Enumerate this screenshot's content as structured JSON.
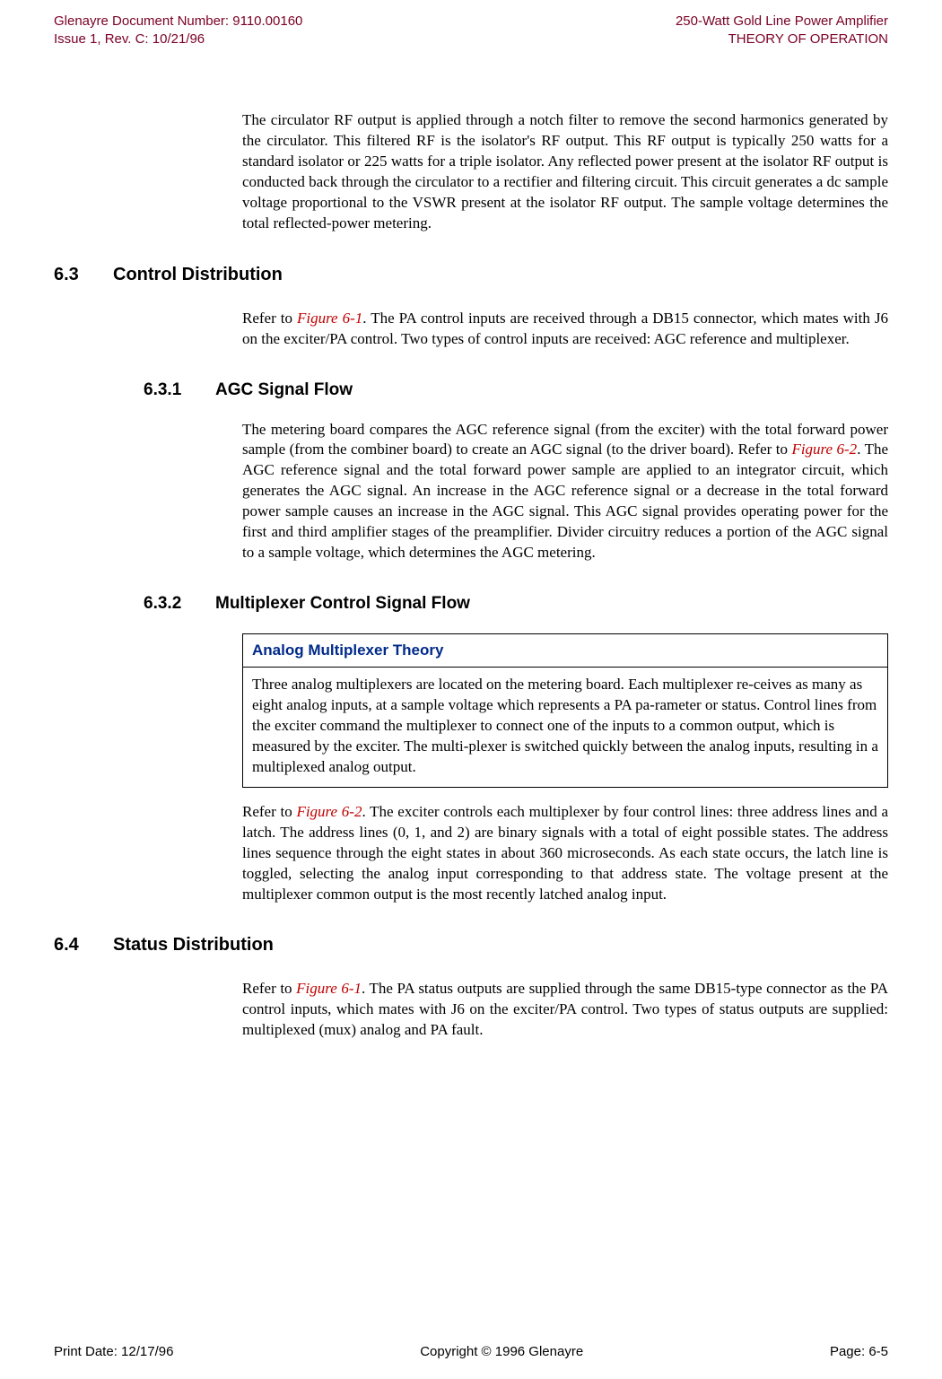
{
  "header": {
    "left_line1": "Glenayre Document Number: 9110.00160",
    "left_line2": "Issue 1, Rev. C: 10/21/96",
    "right_line1": "250-Watt Gold Line Power Amplifier",
    "right_line2": "THEORY OF OPERATION"
  },
  "intro_paragraph": "The circulator RF output is applied through a notch filter to remove the second harmonics generated by the circulator. This filtered RF is the isolator's RF output. This RF output is typically 250 watts for a standard isolator or 225 watts for a triple isolator. Any reflected power present at the isolator RF output is conducted back through the circulator to a rectifier and filtering circuit. This circuit generates a dc sample voltage proportional to the VSWR present at the isolator RF output. The sample voltage determines the total reflected-power metering.",
  "s63": {
    "num": "6.3",
    "title": "Control Distribution",
    "intro_pre": "Refer to ",
    "intro_ref": "Figure 6-1",
    "intro_post": ". The PA control inputs are received through a DB15 connector, which mates with J6 on the exciter/PA control. Two types of control inputs are received: AGC reference and multiplexer."
  },
  "s631": {
    "num": "6.3.1",
    "title": "AGC Signal Flow",
    "para_pre": "The metering board compares the AGC reference signal (from the exciter) with the total forward power sample (from the combiner board) to create an AGC signal (to the driver board). Refer to ",
    "para_ref": "Figure 6-2",
    "para_post": ". The AGC reference signal and the total forward power sample are applied to an integrator circuit, which generates the AGC signal. An increase in the AGC reference signal or a decrease in the total forward power sample causes an increase in the AGC signal. This AGC signal provides operating power for the first and third amplifier stages of the preamplifier. Divider circuitry reduces a portion of the AGC signal to a sample voltage, which determines the AGC metering."
  },
  "s632": {
    "num": "6.3.2",
    "title": "Multiplexer Control Signal Flow",
    "box_title": "Analog Multiplexer Theory",
    "box_body": "Three analog multiplexers are located on the metering board. Each multiplexer  re-ceives as many as eight analog inputs, at a sample voltage which represents a PA pa-rameter or status. Control lines from the exciter command the multiplexer to connect one of the inputs to a common output, which is measured by the exciter.  The multi-plexer is switched quickly between the analog inputs, resulting in a multiplexed analog output.",
    "para_pre": "Refer to ",
    "para_ref": "Figure 6-2",
    "para_post": ". The exciter controls each multiplexer by four control lines: three address lines and a latch. The address lines (0, 1, and 2) are binary signals with a total of eight possible states. The address lines sequence through the eight states in about 360 microseconds. As each state occurs, the latch line is toggled, selecting the analog input corresponding to that address state. The voltage present at the multiplexer common output is the most recently latched analog input."
  },
  "s64": {
    "num": "6.4",
    "title": "Status Distribution",
    "para_pre": "Refer to ",
    "para_ref": "Figure 6-1",
    "para_post": ". The PA status outputs are supplied through the same DB15-type connector as the PA control inputs, which mates with J6 on the exciter/PA control. Two types of status outputs are supplied: multiplexed (mux) analog and PA fault."
  },
  "footer": {
    "left": "Print Date: 12/17/96",
    "center": "Copyright © 1996 Glenayre",
    "right": "Page: 6-5"
  },
  "colors": {
    "header_color": "#7a0026",
    "figref_color": "#c00000",
    "box_title_color": "#002a8a"
  }
}
